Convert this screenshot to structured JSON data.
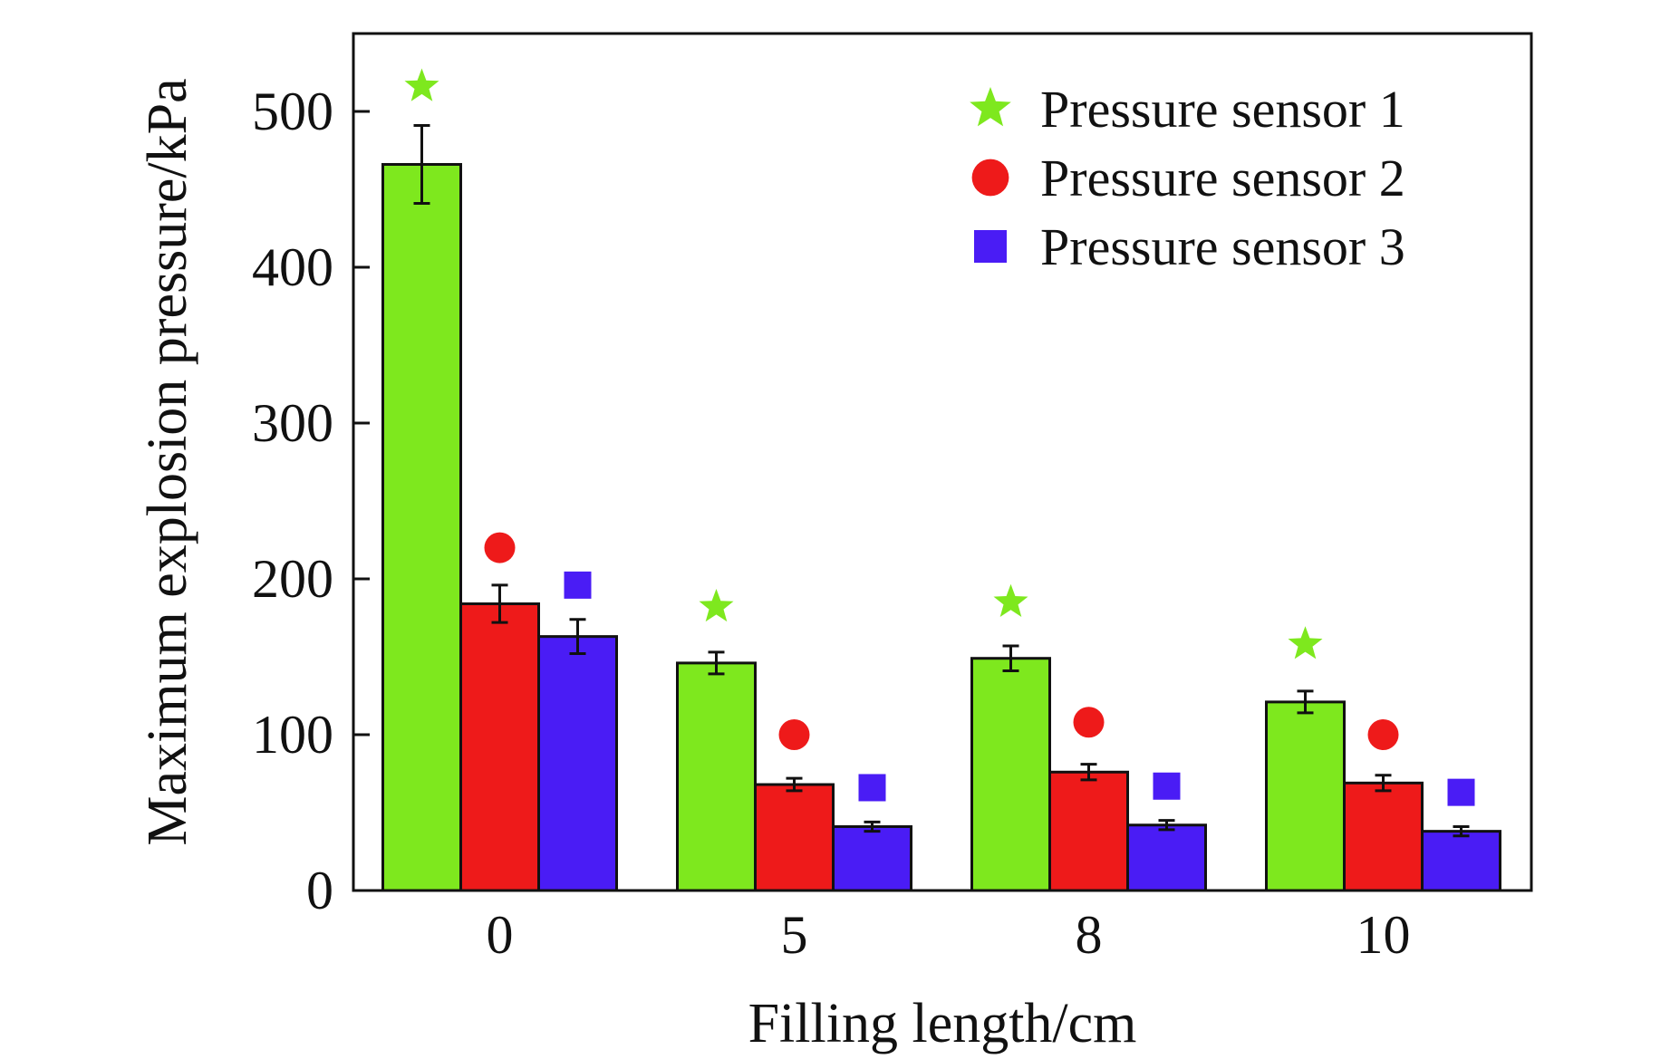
{
  "chart_data": {
    "type": "bar",
    "title": "",
    "xlabel": "Filling length/cm",
    "ylabel": "Maximum explosion pressure/kPa",
    "categories": [
      "0",
      "5",
      "8",
      "10"
    ],
    "ylim": [
      0,
      550
    ],
    "yticks": [
      0,
      100,
      200,
      300,
      400,
      500
    ],
    "grid": false,
    "legend_position": "top-right",
    "series": [
      {
        "name": "Pressure sensor 1",
        "color": "#7ee81e",
        "marker": "star",
        "values": [
          466,
          146,
          149,
          121
        ],
        "errors": [
          25,
          7,
          8,
          7
        ],
        "marker_values": [
          516,
          182,
          185,
          158
        ]
      },
      {
        "name": "Pressure sensor 2",
        "color": "#ee1a1a",
        "marker": "circle",
        "values": [
          184,
          68,
          76,
          69
        ],
        "errors": [
          12,
          4,
          5,
          5
        ],
        "marker_values": [
          220,
          100,
          108,
          100
        ]
      },
      {
        "name": "Pressure sensor 3",
        "color": "#4a1cf5",
        "marker": "square",
        "values": [
          163,
          41,
          42,
          38
        ],
        "errors": [
          11,
          3,
          3,
          3
        ],
        "marker_values": [
          196,
          66,
          67,
          63
        ]
      }
    ]
  }
}
